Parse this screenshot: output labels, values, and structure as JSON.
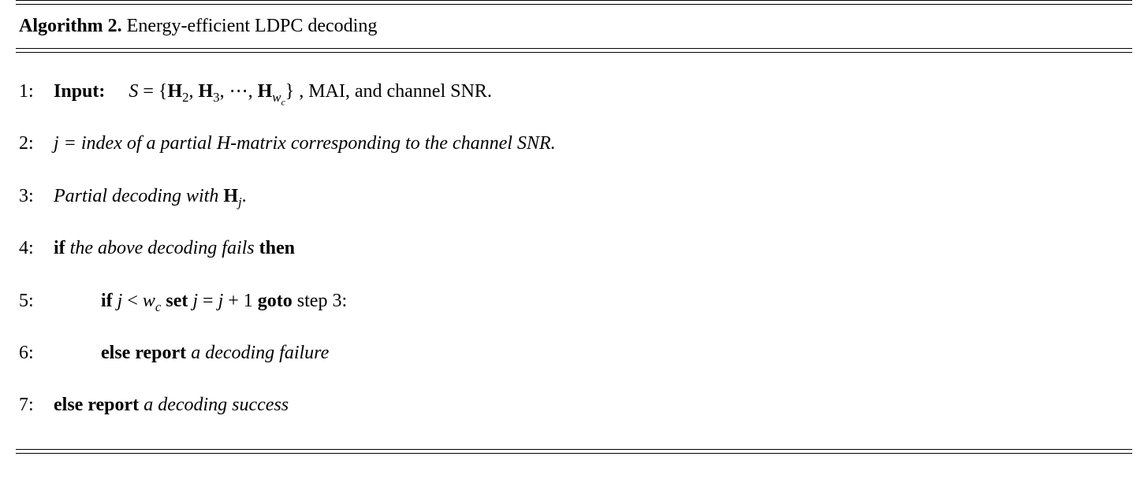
{
  "algorithm": {
    "number_label": "Algorithm 2.",
    "title_text": " Energy-efficient LDPC decoding",
    "title_fontsize_pt": 18,
    "body_fontsize_pt": 18,
    "font_family": "Times New Roman",
    "text_color": "#000000",
    "background_color": "#ffffff",
    "rule_color": "#000000",
    "rule_top_style": "double",
    "rule_bottom_style": "double",
    "linenos": [
      "1:",
      "2:",
      "3:",
      "4:",
      "5:",
      "6:",
      "7:"
    ],
    "lines": {
      "l1": {
        "kw_input": "Input:",
        "var_S": "S",
        "eq": " = {",
        "H2": "H",
        "H2_sub": "2",
        "sep1": ", ",
        "H3": "H",
        "H3_sub": "3",
        "sep2": ", ⋯, ",
        "Hw": "H",
        "Hw_sub_w": "w",
        "Hw_sub_c": "c",
        "close": "}",
        "tail": " , MAI, and channel SNR."
      },
      "l2": {
        "var_j": "j",
        "text": " = index of a partial H-matrix corresponding to the channel SNR."
      },
      "l3": {
        "text": "Partial decoding with   ",
        "H": "H",
        "sub_j": "j",
        "period": "."
      },
      "l4": {
        "kw_if": "if ",
        "cond": "the above decoding fails",
        "kw_then": " then"
      },
      "l5": {
        "kw_if": "if   ",
        "var_j": "j",
        "lt": " < ",
        "var_w": "w",
        "sub_c": "c",
        "kw_set": "   set   ",
        "var_j2": "j",
        "eq": " = ",
        "var_j3": "j",
        "plus1": " + 1",
        "kw_goto": "   goto ",
        "step": "step 3:"
      },
      "l6": {
        "kw": "else report ",
        "text": "a decoding failure"
      },
      "l7": {
        "kw": "else report ",
        "text": "a decoding success"
      }
    }
  }
}
